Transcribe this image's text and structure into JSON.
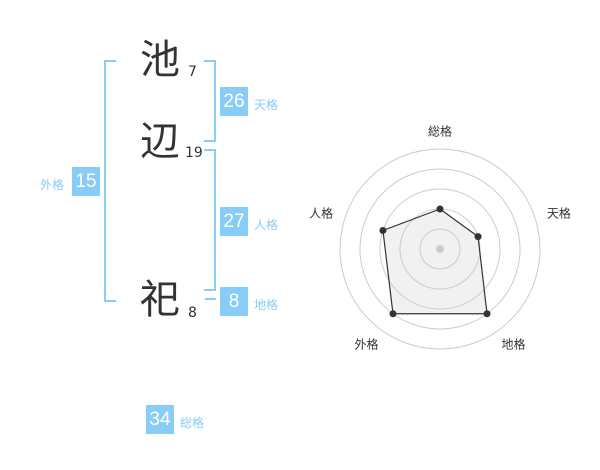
{
  "name": {
    "chars": [
      {
        "char": "池",
        "strokes": "7"
      },
      {
        "char": "辺",
        "strokes": "19"
      },
      {
        "char": "祀",
        "strokes": "8"
      }
    ]
  },
  "fortunes": {
    "tenkaku": {
      "label": "天格",
      "value": "26"
    },
    "jinkaku": {
      "label": "人格",
      "value": "27"
    },
    "chikaku": {
      "label": "地格",
      "value": "8"
    },
    "gaikaku": {
      "label": "外格",
      "value": "15"
    },
    "soukaku": {
      "label": "総格",
      "value": "34"
    }
  },
  "colors": {
    "accent": "#88ccf8"
  },
  "chart_data": {
    "type": "radar",
    "axes": [
      "総格",
      "天格",
      "地格",
      "外格",
      "人格"
    ],
    "values": [
      2,
      2,
      4,
      4,
      3
    ],
    "range": [
      0,
      5
    ],
    "rings": 5
  }
}
